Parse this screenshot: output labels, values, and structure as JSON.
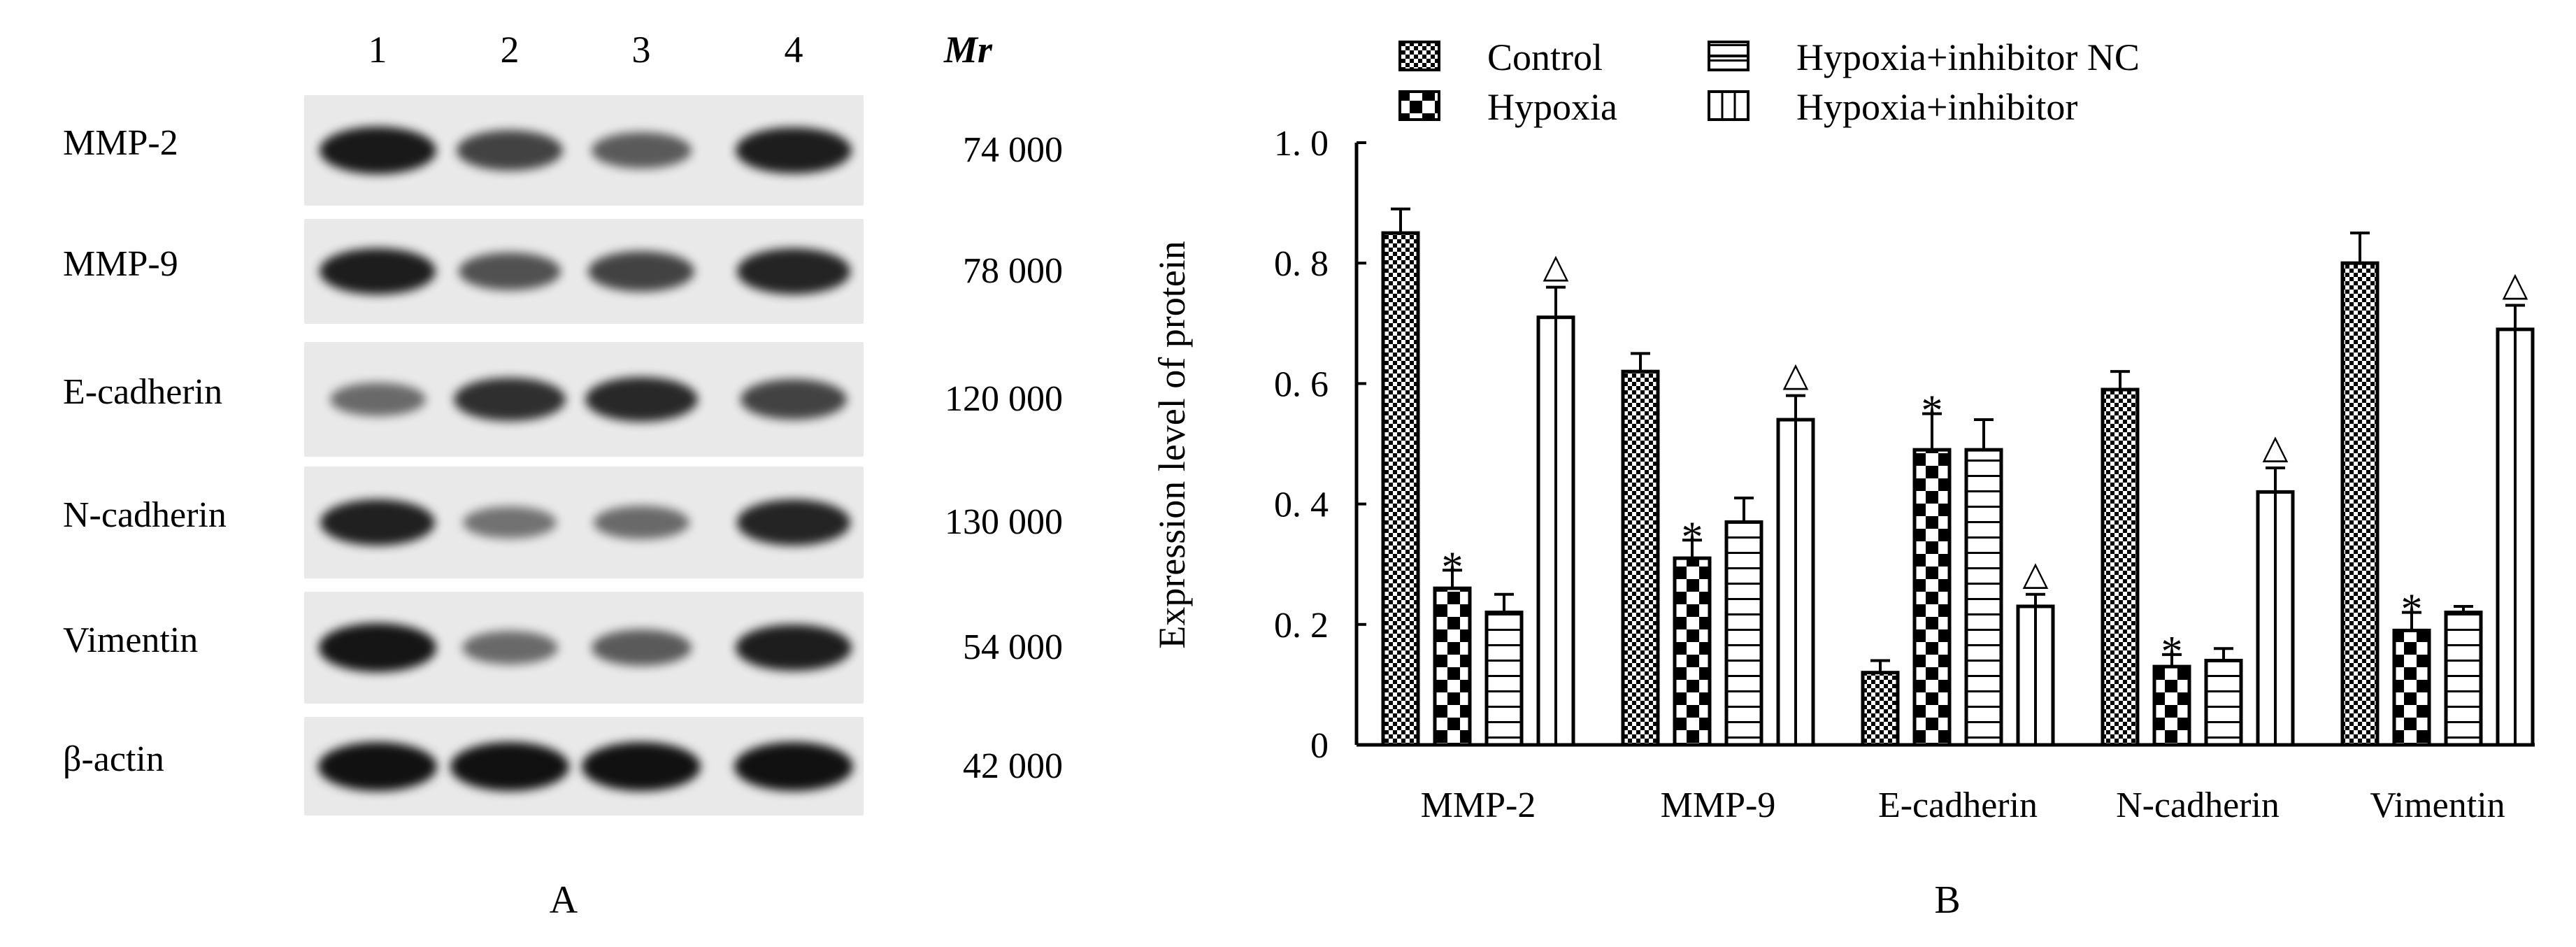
{
  "panel_a": {
    "letter": "A",
    "lanes": [
      "1",
      "2",
      "3",
      "4"
    ],
    "mr_header": "Mr",
    "rows": [
      {
        "label": "MMP-2",
        "mr": "74 000",
        "intensity": [
          0.95,
          0.7,
          0.55,
          0.92
        ]
      },
      {
        "label": "MMP-9",
        "mr": "78 000",
        "intensity": [
          0.92,
          0.6,
          0.7,
          0.88
        ]
      },
      {
        "label": "E-cadherin",
        "mr": "120 000",
        "intensity": [
          0.45,
          0.82,
          0.85,
          0.7
        ]
      },
      {
        "label": "N-cadherin",
        "mr": "130 000",
        "intensity": [
          0.9,
          0.4,
          0.45,
          0.88
        ]
      },
      {
        "label": "Vimentin",
        "mr": "54 000",
        "intensity": [
          0.98,
          0.45,
          0.55,
          0.92
        ]
      },
      {
        "label": "β-actin",
        "mr": "42 000",
        "intensity": [
          1.0,
          1.0,
          1.0,
          1.0
        ]
      }
    ]
  },
  "panel_b": {
    "letter": "B"
  },
  "chart_data": {
    "type": "bar",
    "title": "",
    "xlabel": "",
    "ylabel": "Expression level of protein",
    "ylim": [
      0,
      1.0
    ],
    "yticks": [
      0,
      0.2,
      0.4,
      0.6,
      0.8,
      1.0
    ],
    "ytick_labels": [
      "0",
      "0. 2",
      "0. 4",
      "0. 6",
      "0. 8",
      "1. 0"
    ],
    "grid": false,
    "legend_position": "top",
    "categories": [
      "MMP-2",
      "MMP-9",
      "E-cadherin",
      "N-cadherin",
      "Vimentin"
    ],
    "series": [
      {
        "name": "Control",
        "pattern": "fine-checker",
        "values": [
          0.85,
          0.62,
          0.12,
          0.59,
          0.8
        ],
        "errors": [
          0.04,
          0.03,
          0.02,
          0.03,
          0.05
        ],
        "markers": [
          "",
          "",
          "",
          "",
          ""
        ]
      },
      {
        "name": "Hypoxia",
        "pattern": "coarse-checker",
        "values": [
          0.26,
          0.31,
          0.49,
          0.13,
          0.19
        ],
        "errors": [
          0.03,
          0.03,
          0.06,
          0.02,
          0.03
        ],
        "markers": [
          "*",
          "*",
          "*",
          "*",
          "*"
        ]
      },
      {
        "name": "Hypoxia+inhibitor NC",
        "pattern": "horizontal-lines",
        "values": [
          0.22,
          0.37,
          0.49,
          0.14,
          0.22
        ],
        "errors": [
          0.03,
          0.04,
          0.05,
          0.02,
          0.01
        ],
        "markers": [
          "",
          "",
          "",
          "",
          ""
        ]
      },
      {
        "name": "Hypoxia+inhibitor",
        "pattern": "vertical-lines",
        "values": [
          0.71,
          0.54,
          0.23,
          0.42,
          0.69
        ],
        "errors": [
          0.05,
          0.04,
          0.02,
          0.04,
          0.04
        ],
        "markers": [
          "△",
          "△",
          "△",
          "△",
          "△"
        ]
      }
    ]
  }
}
